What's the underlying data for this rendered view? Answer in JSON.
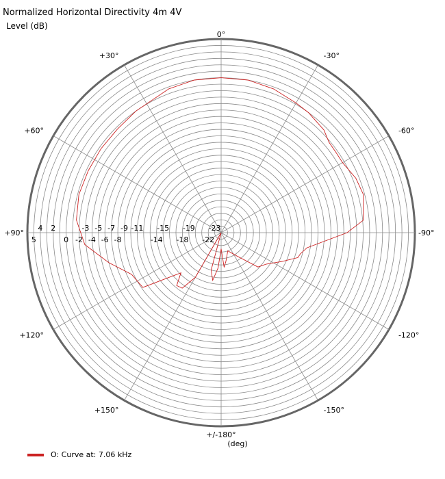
{
  "chart_data": {
    "type": "polar-line",
    "title": "Normalized Horizontal Directivity 4m 4V",
    "ylabel": "Level  (dB)",
    "xlabel": "(deg)",
    "r_range": [
      -24,
      6
    ],
    "angle_labels": [
      {
        "angle": 0,
        "label": "0°"
      },
      {
        "angle": 30,
        "label": "+30°"
      },
      {
        "angle": 60,
        "label": "+60°"
      },
      {
        "angle": 90,
        "label": "+90°"
      },
      {
        "angle": 120,
        "label": "+120°"
      },
      {
        "angle": 150,
        "label": "+150°"
      },
      {
        "angle": 180,
        "label": "+/-180°"
      },
      {
        "angle": -150,
        "label": "-150°"
      },
      {
        "angle": -120,
        "label": "-120°"
      },
      {
        "angle": -90,
        "label": "-90°"
      },
      {
        "angle": -60,
        "label": "-60°"
      },
      {
        "angle": -30,
        "label": "-30°"
      }
    ],
    "r_ticks_upper": [
      4,
      2,
      -3,
      -5,
      -7,
      -9,
      -11,
      -15,
      -19,
      -23
    ],
    "r_ticks_lower": [
      5,
      0,
      -2,
      -4,
      -6,
      -8,
      -14,
      -18,
      -22
    ],
    "series": [
      {
        "name": "O: Curve at: 7.06 kHz",
        "color": "#cc2222",
        "points": [
          {
            "angle": 0,
            "r": 0
          },
          {
            "angle": -10,
            "r": 0
          },
          {
            "angle": -20,
            "r": -0.3
          },
          {
            "angle": -30,
            "r": -0.8
          },
          {
            "angle": -36,
            "r": -1.0
          },
          {
            "angle": -45,
            "r": -1.5
          },
          {
            "angle": -50,
            "r": -2.2
          },
          {
            "angle": -55,
            "r": -2.3
          },
          {
            "angle": -60,
            "r": -2.3
          },
          {
            "angle": -68,
            "r": -1.5
          },
          {
            "angle": -75,
            "r": -1.2
          },
          {
            "angle": -85,
            "r": -1.9
          },
          {
            "angle": -90,
            "r": -4.5
          },
          {
            "angle": -100,
            "r": -10.5
          },
          {
            "angle": -105,
            "r": -11.3
          },
          {
            "angle": -108,
            "r": -11.5
          },
          {
            "angle": -115,
            "r": -13.5
          },
          {
            "angle": -125,
            "r": -15.5
          },
          {
            "angle": -133,
            "r": -16.2
          },
          {
            "angle": -145,
            "r": -19.5
          },
          {
            "angle": -160,
            "r": -21.0
          },
          {
            "angle": -170,
            "r": -19.6
          },
          {
            "angle": -175,
            "r": -18.6
          },
          {
            "angle": -180,
            "r": -21.5
          },
          {
            "angle": 180,
            "r": -21.5
          },
          {
            "angle": 175,
            "r": -18.5
          },
          {
            "angle": 170,
            "r": -16.5
          },
          {
            "angle": 165,
            "r": -18.0
          },
          {
            "angle": 160,
            "r": -24.0
          },
          {
            "angle": 150,
            "r": -16.0
          },
          {
            "angle": 145,
            "r": -13.5
          },
          {
            "angle": 140,
            "r": -13.3
          },
          {
            "angle": 135,
            "r": -15.2
          },
          {
            "angle": 125,
            "r": -9.2
          },
          {
            "angle": 115,
            "r": -8.7
          },
          {
            "angle": 105,
            "r": -6.0
          },
          {
            "angle": 95,
            "r": -2.8
          },
          {
            "angle": 85,
            "r": -1.5
          },
          {
            "angle": 75,
            "r": -1.2
          },
          {
            "angle": 65,
            "r": -1.3
          },
          {
            "angle": 55,
            "r": -1.3
          },
          {
            "angle": 45,
            "r": -1.3
          },
          {
            "angle": 35,
            "r": -1.0
          },
          {
            "angle": 20,
            "r": -0.3
          },
          {
            "angle": 10,
            "r": 0
          },
          {
            "angle": 0,
            "r": 0
          }
        ]
      }
    ]
  }
}
